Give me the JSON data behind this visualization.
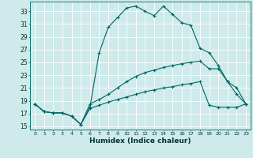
{
  "xlabel": "Humidex (Indice chaleur)",
  "bg_color": "#ceeaea",
  "grid_color": "#ffffff",
  "line_color": "#006666",
  "xlim": [
    -0.5,
    23.5
  ],
  "ylim": [
    14.5,
    34.5
  ],
  "xticks": [
    0,
    1,
    2,
    3,
    4,
    5,
    6,
    7,
    8,
    9,
    10,
    11,
    12,
    13,
    14,
    15,
    16,
    17,
    18,
    19,
    20,
    21,
    22,
    23
  ],
  "yticks": [
    15,
    17,
    19,
    21,
    23,
    25,
    27,
    29,
    31,
    33
  ],
  "curve1_x": [
    0,
    1,
    2,
    3,
    4,
    5,
    6,
    7,
    8,
    9,
    10,
    11,
    12,
    13,
    14,
    15,
    16,
    17,
    18,
    19,
    20,
    21,
    22,
    23
  ],
  "curve1_y": [
    18.5,
    17.3,
    17.1,
    17.1,
    16.6,
    15.3,
    18.0,
    26.5,
    30.5,
    32.0,
    33.5,
    33.8,
    33.0,
    32.3,
    33.8,
    32.5,
    31.2,
    30.8,
    27.2,
    26.5,
    24.5,
    22.0,
    20.0,
    18.5
  ],
  "curve2_x": [
    0,
    1,
    2,
    3,
    4,
    5,
    6,
    7,
    8,
    9,
    10,
    11,
    12,
    13,
    14,
    15,
    16,
    17,
    18,
    19,
    20,
    21,
    22,
    23
  ],
  "curve2_y": [
    18.5,
    17.3,
    17.1,
    17.1,
    16.6,
    15.3,
    18.5,
    19.2,
    20.0,
    21.0,
    22.0,
    22.8,
    23.4,
    23.8,
    24.2,
    24.5,
    24.8,
    25.0,
    25.2,
    24.0,
    24.0,
    22.0,
    21.0,
    18.5
  ],
  "curve3_x": [
    0,
    1,
    2,
    3,
    4,
    5,
    6,
    7,
    8,
    9,
    10,
    11,
    12,
    13,
    14,
    15,
    16,
    17,
    18,
    19,
    20,
    21,
    22,
    23
  ],
  "curve3_y": [
    18.5,
    17.3,
    17.1,
    17.1,
    16.6,
    15.3,
    17.8,
    18.3,
    18.8,
    19.2,
    19.6,
    20.0,
    20.4,
    20.7,
    21.0,
    21.2,
    21.5,
    21.7,
    22.0,
    18.3,
    18.0,
    18.0,
    18.0,
    18.5
  ]
}
